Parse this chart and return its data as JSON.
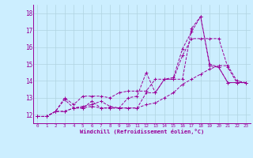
{
  "xlabel": "Windchill (Refroidissement éolien,°C)",
  "bg_color": "#cceeff",
  "grid_color": "#b0d4e0",
  "line_color": "#990099",
  "xlim": [
    -0.5,
    23.5
  ],
  "ylim": [
    11.5,
    18.5
  ],
  "yticks": [
    12,
    13,
    14,
    15,
    16,
    17,
    18
  ],
  "xticks": [
    0,
    1,
    2,
    3,
    4,
    5,
    6,
    7,
    8,
    9,
    10,
    11,
    12,
    13,
    14,
    15,
    16,
    17,
    18,
    19,
    20,
    21,
    22,
    23
  ],
  "series": [
    [
      11.9,
      11.9,
      12.2,
      12.9,
      12.4,
      12.4,
      12.8,
      12.4,
      12.4,
      12.4,
      12.4,
      12.4,
      13.3,
      13.3,
      14.1,
      14.1,
      14.1,
      17.1,
      17.8,
      14.9,
      14.8,
      13.9,
      13.9,
      13.9
    ],
    [
      11.9,
      11.9,
      12.2,
      12.2,
      12.4,
      12.5,
      12.6,
      12.8,
      12.5,
      12.4,
      13.0,
      13.1,
      14.5,
      13.3,
      14.1,
      14.1,
      15.5,
      16.5,
      16.5,
      16.5,
      16.5,
      14.8,
      13.9,
      13.9
    ],
    [
      11.9,
      11.9,
      12.2,
      13.0,
      12.6,
      13.1,
      13.1,
      13.1,
      13.0,
      13.3,
      13.4,
      13.4,
      13.4,
      14.1,
      14.1,
      14.2,
      15.9,
      16.9,
      17.8,
      15.0,
      14.8,
      13.9,
      13.9,
      13.9
    ],
    [
      11.9,
      11.9,
      12.2,
      12.2,
      12.4,
      12.4,
      12.5,
      12.4,
      12.4,
      12.4,
      12.4,
      12.4,
      12.6,
      12.7,
      13.0,
      13.3,
      13.8,
      14.1,
      14.4,
      14.7,
      14.9,
      14.9,
      14.0,
      13.9
    ]
  ]
}
